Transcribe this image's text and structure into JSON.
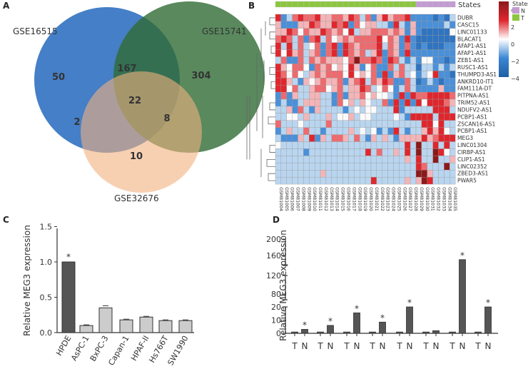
{
  "chart_data": [
    {
      "panel": "A",
      "type": "venn",
      "sets": [
        "GSE16515",
        "GSE15741",
        "GSE32676"
      ],
      "regions": {
        "GSE16515_only": 50,
        "GSE15741_only": 304,
        "GSE32676_only": 10,
        "GSE16515_GSE15741": 167,
        "GSE16515_GSE32676": 2,
        "GSE15741_GSE32676": 8,
        "all": 22
      },
      "colors": {
        "GSE16515": "#3b78c4",
        "GSE15741": "#2f6b35",
        "GSE32676": "#f2b07e"
      }
    },
    {
      "panel": "B",
      "type": "heatmap",
      "annotation_title": "States",
      "legend": {
        "title": "States",
        "items": [
          {
            "label": "N",
            "color": "#c39bd3"
          },
          {
            "label": "T",
            "color": "#8cc63f"
          }
        ]
      },
      "colorbar_ticks": [
        "4",
        "2",
        "0",
        "−2",
        "−4"
      ],
      "value_encoding": "digit 0..8 maps to value -4..4",
      "columns": [
        "GSM81004",
        "GSM81005",
        "GSM81006",
        "GSM81007",
        "GSM81008",
        "GSM81009",
        "GSM81010",
        "GSM81011",
        "GSM81012",
        "GSM81013",
        "GSM81014",
        "GSM81015",
        "GSM81016",
        "GSM81017",
        "GSM81018",
        "GSM81019",
        "GSM81020",
        "GSM81021",
        "GSM81022",
        "GSM81023",
        "GSM81024",
        "GSM81025",
        "GSM81026",
        "GSM81027",
        "GSM81028",
        "GSM81029",
        "GSM81030",
        "GSM81031",
        "GSM81032",
        "GSM81033",
        "GSM81034",
        "GSM81035"
      ],
      "states": "TTTTTTTTTTTTTTTTTTTTTTTTTNNNNNNN",
      "rows": [
        "DUBR",
        "CASC15",
        "LINC01133",
        "BLACAT1",
        "AFAP1-AS1",
        "AFAP1-AS1",
        "ZEB1-AS1",
        "RUSC1-AS1",
        "THUMPD3-AS1",
        "ANKRD10-IT1",
        "FAM111A-DT",
        "PITPNA-AS1",
        "TRIM52-AS1",
        "NDUFV2-AS1",
        "PCBP1-AS1",
        "ZSCAN16-AS1",
        "PCBP1-AS1",
        "MEG3",
        "LINC01304",
        "CIRBP-AS1",
        "CLIP1-AS1",
        "LINC02352",
        "ZBED3-AS1",
        "PWAR5"
      ],
      "values": [
        "72367667556657636257566722221213",
        "52225576557672645533273252222232",
        "55764655765647355666565252111114",
        "67636267364565666674652721111111",
        "73736346267276566673652621211122",
        "74756356267276563572652722222222",
        "36226365655546866762763232442212",
        "75466426564547524622636331332323",
        "76464356566647454627256342347221",
        "77532545655625673657622631232122",
        "77463356645635576346423632222522",
        "26253355332625564544327276677776",
        "23223555332645354336272727477765",
        "33526325333323434433372333337773",
        "33443533353445344333343277773777",
        "63334333363333333333333333774733",
        "23533633233335343423273233575743",
        "32225372536653632535325555756777",
        "43333333333333333333333738337373",
        "33333233333333337363353738338743",
        "33333333333333333333333537338335",
        "33333333333333333333333337633383",
        "33333333533333333333333338853333",
        "33333333333333333733333535873333"
      ]
    },
    {
      "panel": "C",
      "type": "bar",
      "categories": [
        "HPDE",
        "AsPC-1",
        "BxPC-3",
        "Capan-1",
        "HPAF-II",
        "Hs766T",
        "SW1990"
      ],
      "values": [
        1.0,
        0.1,
        0.35,
        0.18,
        0.22,
        0.17,
        0.17
      ],
      "errors": [
        0.0,
        0.01,
        0.03,
        0.01,
        0.01,
        0.01,
        0.01
      ],
      "significance": [
        "*",
        "",
        "",
        "",
        "",
        "",
        ""
      ],
      "ylabel": "Relative MEG3 expression",
      "ylim": [
        0,
        1.5
      ],
      "yticks": [
        "0.0",
        "0.5",
        "1.0",
        "1.5"
      ]
    },
    {
      "panel": "D",
      "type": "bar",
      "categories": [
        "T",
        "N",
        "T",
        "N",
        "T",
        "N",
        "T",
        "N",
        "T",
        "N",
        "T",
        "N",
        "T",
        "N",
        "T",
        "N"
      ],
      "values": [
        1,
        3,
        1,
        6,
        1,
        15.5,
        1,
        8.5,
        1,
        20,
        1,
        2,
        1,
        150,
        1,
        20
      ],
      "significance": [
        "",
        "*",
        "",
        "*",
        "",
        "*",
        "",
        "*",
        "",
        "*",
        "",
        "",
        "",
        "*",
        "",
        "*"
      ],
      "ylabel": "Relative MEG3 expression",
      "axis_breaks": [
        [
          20,
          80
        ],
        [
          120,
          140
        ]
      ],
      "yticks": [
        "0",
        "10",
        "20",
        "80",
        "120",
        "160",
        "200"
      ]
    }
  ],
  "panel_labels": [
    "A",
    "B",
    "C",
    "D"
  ]
}
